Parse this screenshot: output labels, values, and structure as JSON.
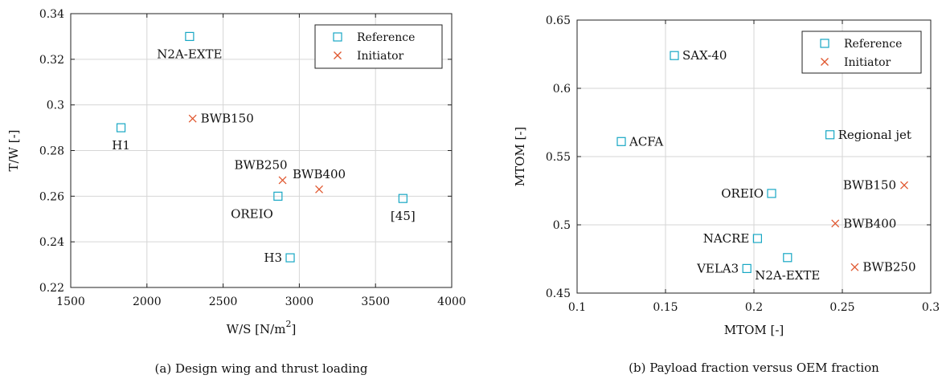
{
  "chart_data": [
    {
      "type": "scatter",
      "caption": "(a) Design wing and thrust loading",
      "xlabel": "W/S [N/m",
      "xlabel_sup": "2",
      "xlabel_end": "]",
      "ylabel": "T/W [-]",
      "xlim": [
        1500,
        4000
      ],
      "ylim": [
        0.22,
        0.34
      ],
      "xticks": [
        1500,
        2000,
        2500,
        3000,
        3500,
        4000
      ],
      "xtick_labels": [
        "1500",
        "2000",
        "2500",
        "3000",
        "3500",
        "4000"
      ],
      "yticks": [
        0.22,
        0.24,
        0.26,
        0.28,
        0.3,
        0.32,
        0.34
      ],
      "ytick_labels": [
        "0.22",
        "0.24",
        "0.26",
        "0.28",
        "0.3",
        "0.32",
        "0.34"
      ],
      "grid": true,
      "legend": {
        "position": "top-right",
        "entries": [
          {
            "label": "Reference",
            "marker": "square",
            "color": "#17a7c4"
          },
          {
            "label": "Initiator",
            "marker": "cross",
            "color": "#e0572f"
          }
        ]
      },
      "series": [
        {
          "name": "Reference",
          "marker": "square",
          "color": "#17a7c4",
          "points": [
            {
              "x": 2280,
              "y": 0.33,
              "label": "N2A-EXTE",
              "pos": "below"
            },
            {
              "x": 1830,
              "y": 0.29,
              "label": "H1",
              "pos": "below"
            },
            {
              "x": 2860,
              "y": 0.26,
              "label": "OREIO",
              "pos": "below-left"
            },
            {
              "x": 3680,
              "y": 0.259,
              "label": "[45]",
              "pos": "below"
            },
            {
              "x": 2940,
              "y": 0.233,
              "label": "H3",
              "pos": "left"
            }
          ]
        },
        {
          "name": "Initiator",
          "marker": "cross",
          "color": "#e0572f",
          "points": [
            {
              "x": 2300,
              "y": 0.294,
              "label": "BWB150",
              "pos": "right"
            },
            {
              "x": 2890,
              "y": 0.267,
              "label": "BWB250",
              "pos": "above-left"
            },
            {
              "x": 3130,
              "y": 0.263,
              "label": "BWB400",
              "pos": "above"
            }
          ]
        }
      ]
    },
    {
      "type": "scatter",
      "caption": "(b) Payload fraction versus OEM fraction",
      "xlabel": "MTOM [-]",
      "ylabel": "MTOM [-]",
      "xlim": [
        0.1,
        0.3
      ],
      "ylim": [
        0.45,
        0.65
      ],
      "xticks": [
        0.1,
        0.15,
        0.2,
        0.25,
        0.3
      ],
      "xtick_labels": [
        "0.1",
        "0.15",
        "0.2",
        "0.25",
        "0.3"
      ],
      "yticks": [
        0.45,
        0.5,
        0.55,
        0.6,
        0.65
      ],
      "ytick_labels": [
        "0.45",
        "0.5",
        "0.55",
        "0.6",
        "0.65"
      ],
      "grid": true,
      "legend": {
        "position": "top-right",
        "entries": [
          {
            "label": "Reference",
            "marker": "square",
            "color": "#17a7c4"
          },
          {
            "label": "Initiator",
            "marker": "cross",
            "color": "#e0572f"
          }
        ]
      },
      "series": [
        {
          "name": "Reference",
          "marker": "square",
          "color": "#17a7c4",
          "points": [
            {
              "x": 0.155,
              "y": 0.624,
              "label": "SAX-40",
              "pos": "right"
            },
            {
              "x": 0.125,
              "y": 0.561,
              "label": "ACFA",
              "pos": "right"
            },
            {
              "x": 0.243,
              "y": 0.566,
              "label": "Regional jet",
              "pos": "right"
            },
            {
              "x": 0.21,
              "y": 0.523,
              "label": "OREIO",
              "pos": "left"
            },
            {
              "x": 0.202,
              "y": 0.49,
              "label": "NACRE",
              "pos": "left"
            },
            {
              "x": 0.219,
              "y": 0.476,
              "label": "N2A-EXTE",
              "pos": "below"
            },
            {
              "x": 0.196,
              "y": 0.468,
              "label": "VELA3",
              "pos": "left"
            }
          ]
        },
        {
          "name": "Initiator",
          "marker": "cross",
          "color": "#e0572f",
          "points": [
            {
              "x": 0.285,
              "y": 0.529,
              "label": "BWB150",
              "pos": "left"
            },
            {
              "x": 0.246,
              "y": 0.501,
              "label": "BWB400",
              "pos": "right"
            },
            {
              "x": 0.257,
              "y": 0.469,
              "label": "BWB250",
              "pos": "right"
            }
          ]
        }
      ]
    }
  ]
}
